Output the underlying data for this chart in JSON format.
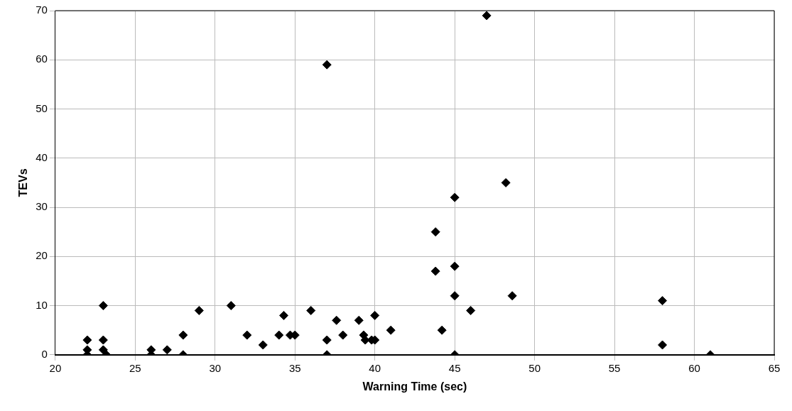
{
  "chart_data": {
    "type": "scatter",
    "xlabel": "Warning Time (sec)",
    "ylabel": "TEVs",
    "x": [
      22,
      22,
      22,
      23,
      23,
      23,
      23.2,
      26,
      26,
      27,
      28,
      28,
      29,
      31,
      32,
      33,
      34,
      34.3,
      34.7,
      35,
      36,
      37,
      37,
      37,
      37.6,
      38,
      39,
      39.3,
      39.4,
      39.8,
      40,
      40,
      41,
      43.8,
      43.8,
      44.2,
      45,
      45,
      45,
      45,
      46,
      47,
      48.2,
      48.6,
      58,
      58,
      61
    ],
    "series": [
      {
        "color": "#000000",
        "values": [
          3,
          1,
          0,
          10,
          3,
          1,
          0,
          1,
          0,
          1,
          4,
          0,
          9,
          10,
          4,
          2,
          4,
          8,
          4,
          4,
          9,
          59,
          3,
          0,
          7,
          4,
          7,
          4,
          3,
          3,
          8,
          3,
          5,
          25,
          17,
          5,
          32,
          18,
          12,
          0,
          9,
          69,
          35,
          12,
          11,
          2,
          0
        ]
      }
    ],
    "xlim": [
      20,
      65
    ],
    "xticks": [
      20,
      25,
      30,
      35,
      40,
      45,
      50,
      55,
      60,
      65
    ],
    "ylim": [
      0,
      70
    ],
    "yticks": [
      0,
      10,
      20,
      30,
      40,
      50,
      60,
      70
    ],
    "grid": true,
    "legend": false,
    "marker": "diamond"
  }
}
